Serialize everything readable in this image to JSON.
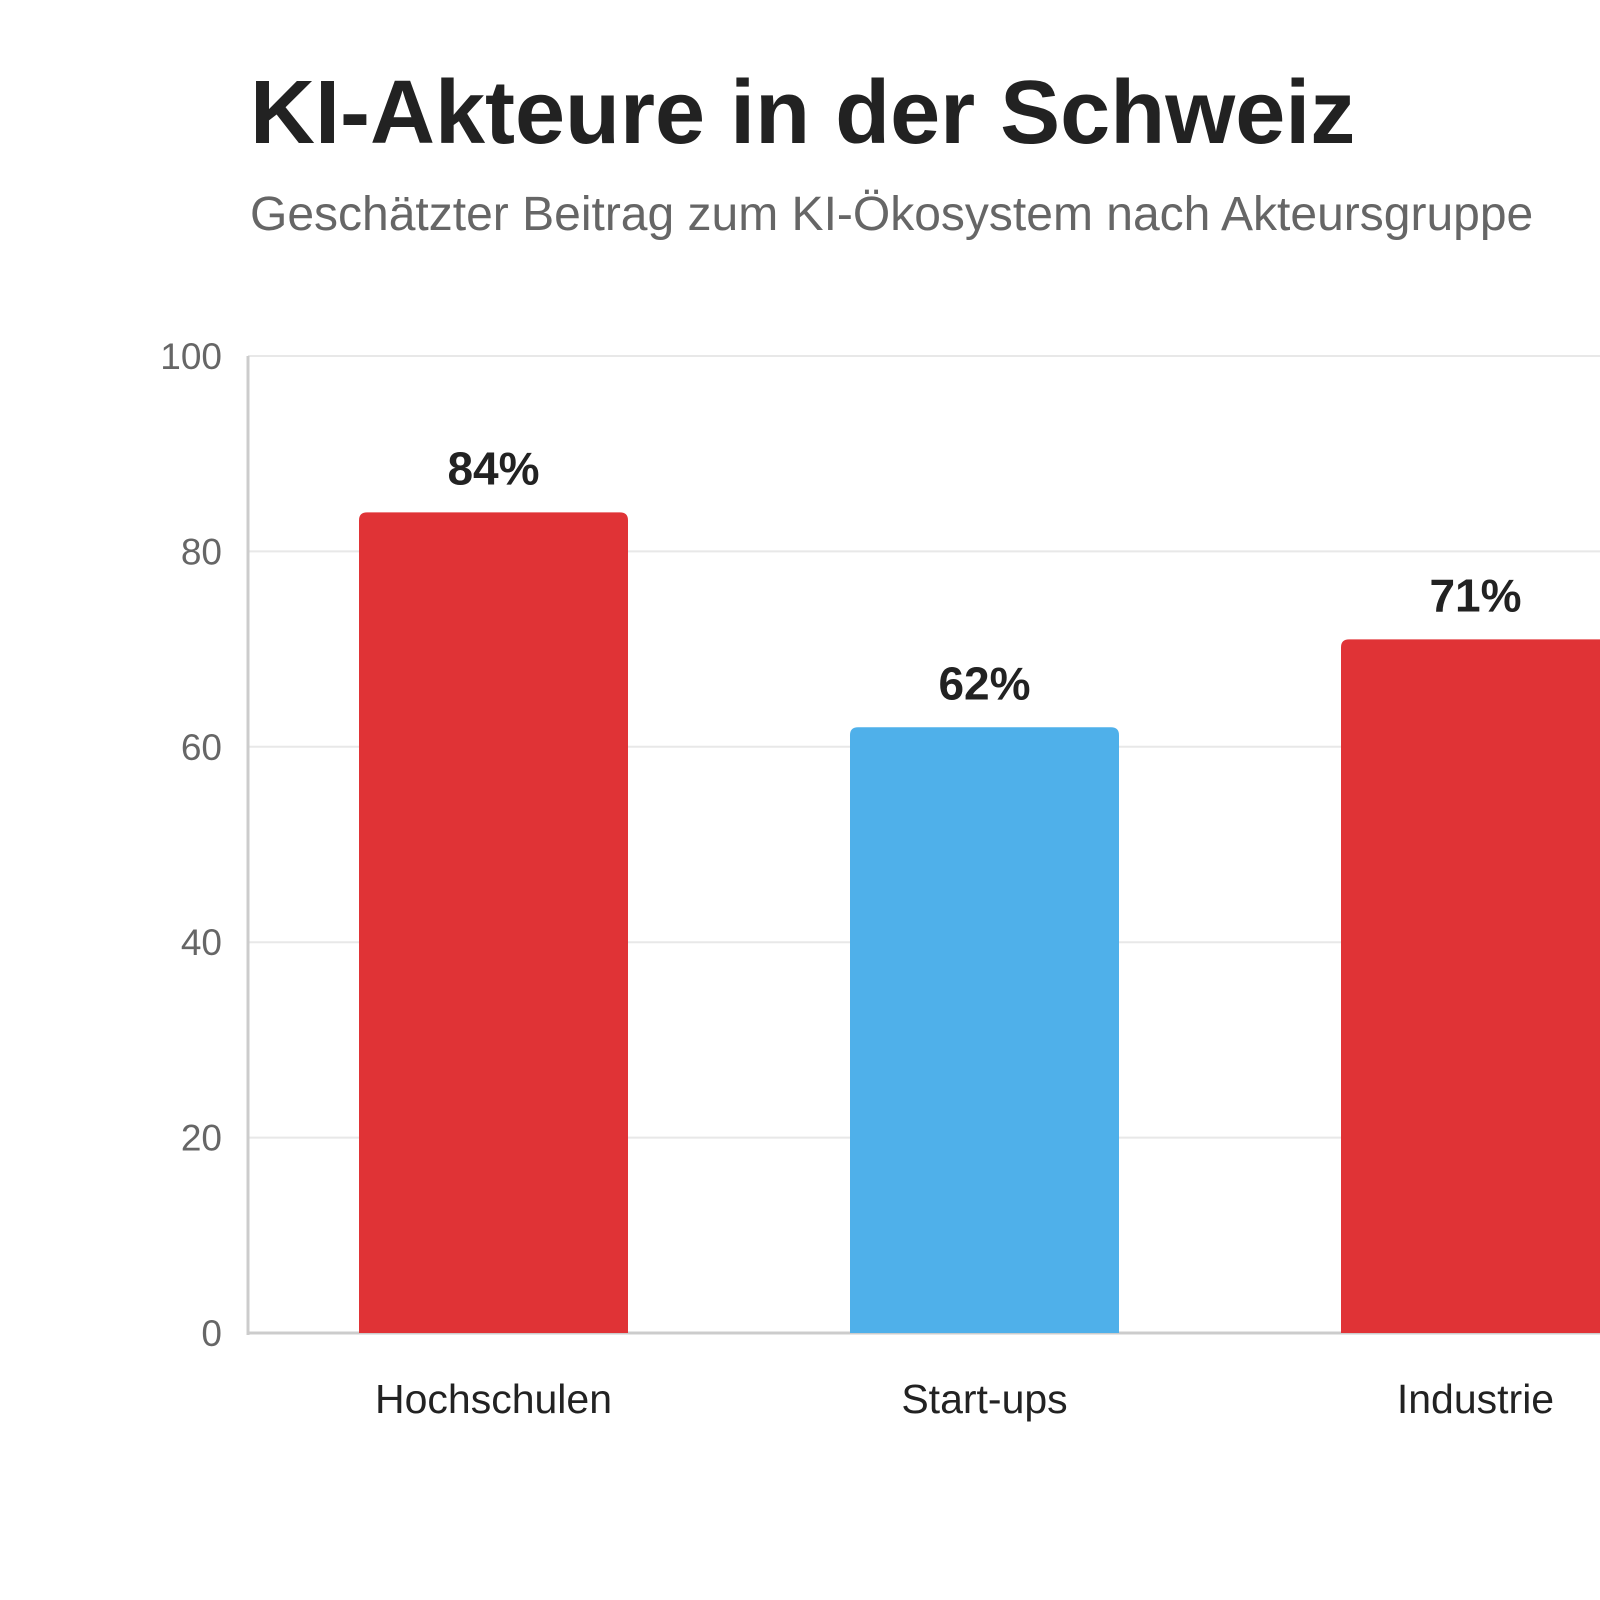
{
  "chart_data": {
    "type": "bar",
    "title": "KI-Akteure in der Schweiz",
    "subtitle": "Geschätzter Beitrag zum KI-Ökosystem nach Akteursgruppe",
    "categories": [
      "Hochschulen",
      "Start-ups",
      "Industrie"
    ],
    "values": [
      84,
      62,
      71
    ],
    "value_labels": [
      "84%",
      "62%",
      "71%"
    ],
    "colors": [
      "#e03336",
      "#4fb0ea",
      "#e03336"
    ],
    "ylim": [
      0,
      100
    ],
    "yticks": [
      0,
      20,
      40,
      60,
      80,
      100
    ],
    "grid": true
  }
}
